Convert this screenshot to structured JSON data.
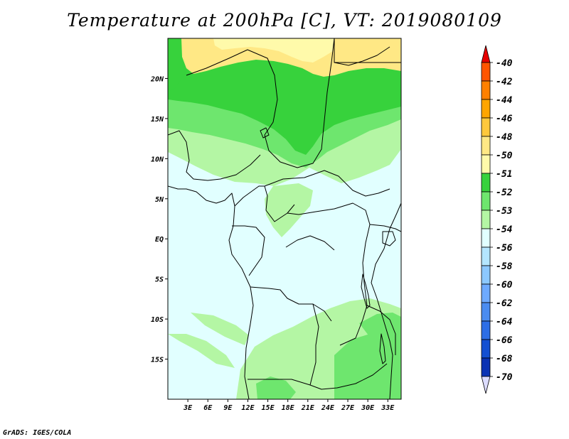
{
  "title": "Temperature at 200hPa [C], VT: 2019080109",
  "credit": "GrADS: IGES/COLA",
  "map": {
    "lon_range": [
      0,
      35
    ],
    "lat_range": [
      -20,
      25
    ],
    "lon_ticks": [
      3,
      6,
      9,
      12,
      15,
      18,
      21,
      24,
      27,
      30,
      33
    ],
    "lon_labels": [
      "3E",
      "6E",
      "9E",
      "12E",
      "15E",
      "18E",
      "21E",
      "24E",
      "27E",
      "30E",
      "33E"
    ],
    "lat_ticks": [
      20,
      15,
      10,
      5,
      0,
      -5,
      -10,
      -15
    ],
    "lat_labels": [
      "20N",
      "15N",
      "10N",
      "5N",
      "EQ",
      "5S",
      "10S",
      "15S"
    ]
  },
  "colorbar": {
    "labels": [
      "-40",
      "-42",
      "-44",
      "-46",
      "-48",
      "-50",
      "-51",
      "-52",
      "-53",
      "-54",
      "-56",
      "-58",
      "-60",
      "-62",
      "-64",
      "-66",
      "-68",
      "-70"
    ],
    "colors": [
      "#ff2a00",
      "#ff5500",
      "#ff8000",
      "#ffa500",
      "#ffc83c",
      "#ffe885",
      "#fffaaa",
      "#37d23c",
      "#6ee66e",
      "#b4f6a4",
      "#e1ffff",
      "#b4e6ff",
      "#8cc8ff",
      "#6eaaff",
      "#4b8cf0",
      "#2d6ee6",
      "#1450d2",
      "#0a32b4",
      "#000f78"
    ],
    "top_arrow_color": "#e60000",
    "bottom_arrow_color": "#dcdcff"
  },
  "palette": {
    "yellow_dark": "#ffe885",
    "yellow_light": "#fffaaa",
    "green_dark": "#37d23c",
    "green_mid": "#6ee66e",
    "green_light": "#b4f6a4",
    "cyan_light": "#e1ffff"
  }
}
